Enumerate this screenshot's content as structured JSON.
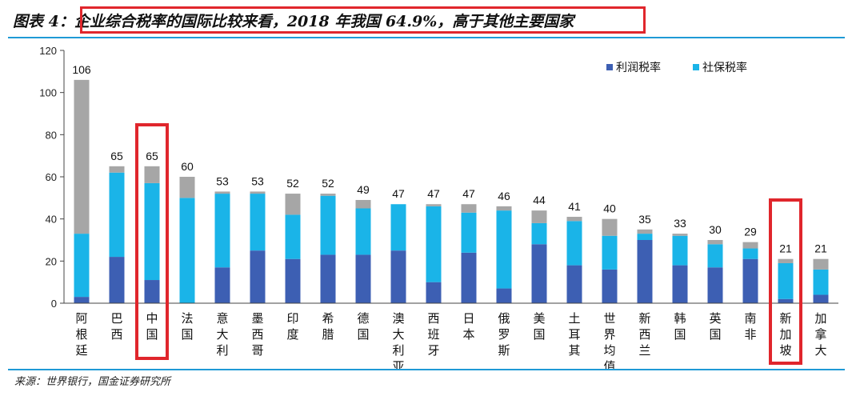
{
  "header": {
    "title": "图表 4：企业综合税率的国际比较来看，2018 年我国 64.9%，高于其他主要国家"
  },
  "source": "来源：世界银行，国金证券研究所",
  "colors": {
    "profit": "#3d5fb3",
    "social": "#1ab4e8",
    "other": "#a6a6a6",
    "highlight": "#e0262c",
    "rule": "#1f9ad6"
  },
  "chart_data": {
    "type": "bar",
    "stacked": true,
    "categories": [
      "阿根廷",
      "巴西",
      "中国",
      "法国",
      "意大利",
      "墨西哥",
      "印度",
      "希腊",
      "德国",
      "澳大利亚",
      "西班牙",
      "日本",
      "俄罗斯",
      "美国",
      "土耳其",
      "世界均值",
      "新西兰",
      "韩国",
      "英国",
      "南非",
      "新加坡",
      "加拿大"
    ],
    "totals": [
      "106",
      "65",
      "65",
      "60",
      "53",
      "53",
      "52",
      "52",
      "49",
      "47",
      "47",
      "47",
      "46",
      "44",
      "41",
      "40",
      "35",
      "33",
      "30",
      "29",
      "21",
      "21"
    ],
    "series": [
      {
        "name": "利润税率",
        "values": [
          3,
          22,
          11,
          0,
          17,
          25,
          21,
          23,
          23,
          25,
          10,
          24,
          7,
          28,
          18,
          16,
          30,
          18,
          17,
          21,
          2,
          4
        ]
      },
      {
        "name": "社保税率",
        "values": [
          30,
          40,
          46,
          50,
          35,
          27,
          21,
          28,
          22,
          22,
          36,
          19,
          37,
          10,
          21,
          16,
          3,
          14,
          11,
          5,
          17,
          12
        ]
      },
      {
        "values": [
          73,
          3,
          8,
          10,
          1,
          1,
          10,
          1,
          4,
          0,
          1,
          4,
          2,
          6,
          2,
          8,
          2,
          1,
          2,
          3,
          2,
          5
        ]
      }
    ],
    "ylim": [
      0,
      120
    ],
    "yticks": [
      "0",
      "20",
      "40",
      "60",
      "80",
      "100",
      "120"
    ],
    "highlighted": [
      "中国",
      "新加坡"
    ],
    "legend_position": "top-right"
  }
}
